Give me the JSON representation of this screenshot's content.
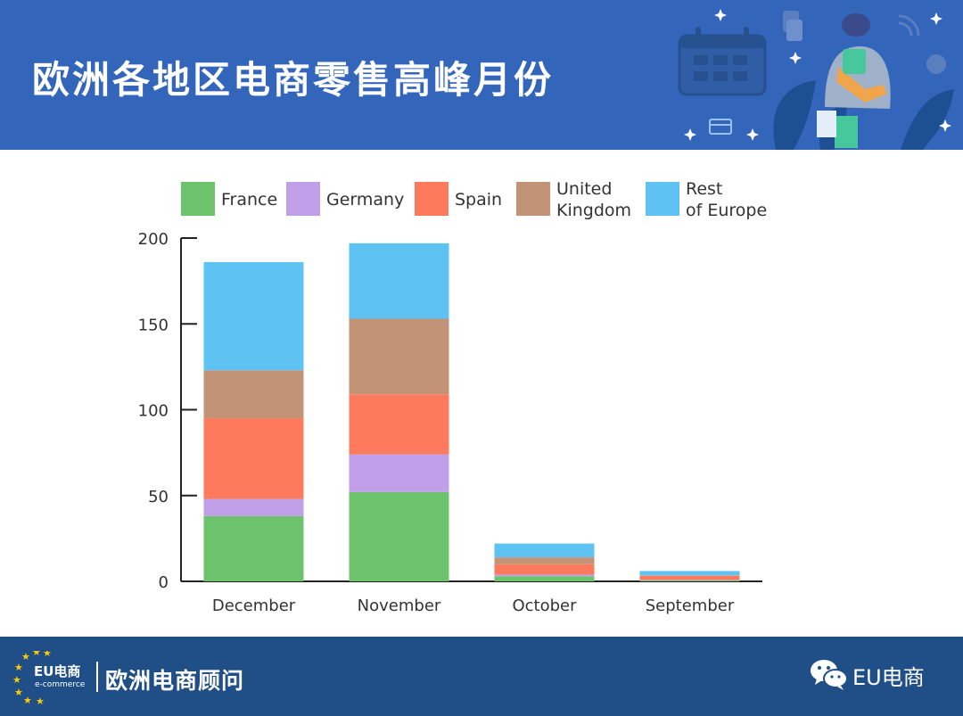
{
  "header": {
    "title": "欧洲各地区电商零售高峰月份"
  },
  "footer": {
    "logo_main": "EU电商",
    "logo_sub": "e-commerce",
    "brand": "欧洲电商顾问",
    "wechat_label": "EU电商"
  },
  "colors": {
    "header_bg": "#3366bb",
    "footer_bg": "#1f4f86",
    "france": "#6cc36b",
    "germany": "#c09fe8",
    "spain": "#fd7b5c",
    "uk": "#c29377",
    "rest": "#5ec3f2"
  },
  "chart_data": {
    "type": "bar",
    "stacked": true,
    "categories": [
      "December",
      "November",
      "October",
      "September"
    ],
    "series": [
      {
        "name": "France",
        "values": [
          38,
          52,
          3,
          0.5
        ]
      },
      {
        "name": "Germany",
        "values": [
          10,
          22,
          1,
          0.3
        ]
      },
      {
        "name": "Spain",
        "values": [
          47,
          35,
          6,
          2.4
        ]
      },
      {
        "name": "United Kingdom",
        "values": [
          28,
          44,
          4,
          0.3
        ]
      },
      {
        "name": "Rest of Europe",
        "values": [
          63,
          44,
          8,
          2.5
        ]
      }
    ],
    "legend": [
      {
        "lines": [
          "France"
        ]
      },
      {
        "lines": [
          "Germany"
        ]
      },
      {
        "lines": [
          "Spain"
        ]
      },
      {
        "lines": [
          "United",
          "Kingdom"
        ]
      },
      {
        "lines": [
          "Rest",
          "of Europe"
        ]
      }
    ],
    "ylim": [
      0,
      200
    ],
    "yticks": [
      0,
      50,
      100,
      150,
      200
    ],
    "legend_position": "top",
    "grid": false
  }
}
